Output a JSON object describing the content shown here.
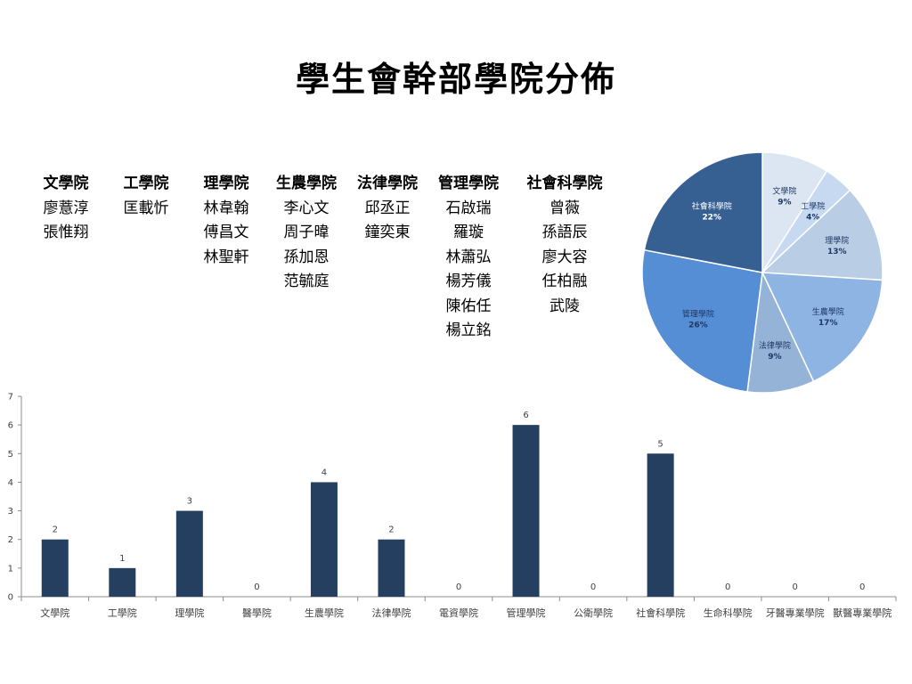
{
  "title": "學生會幹部學院分佈",
  "roster": [
    {
      "college": "文學院",
      "members": [
        "廖薏淳",
        "張惟翔"
      ]
    },
    {
      "college": "工學院",
      "members": [
        "匡載忻"
      ]
    },
    {
      "college": "理學院",
      "members": [
        "林韋翰",
        "傅昌文",
        "林聖軒"
      ]
    },
    {
      "college": "生農學院",
      "members": [
        "李心文",
        "周子暐",
        "孫加恩",
        "范毓庭"
      ]
    },
    {
      "college": "法律學院",
      "members": [
        "邱丞正",
        "鐘奕東"
      ]
    },
    {
      "college": "管理學院",
      "members": [
        "石啟瑞",
        "羅璇",
        "林蕭弘",
        "楊芳儀",
        "陳佑任",
        "楊立銘"
      ]
    },
    {
      "college": "社會科學院",
      "members": [
        "曾薇",
        "孫語辰",
        "廖大容",
        "任柏融",
        "武陵"
      ]
    }
  ],
  "chart_data": [
    {
      "type": "pie",
      "labels": [
        "文學院",
        "工學院",
        "理學院",
        "生農學院",
        "法律學院",
        "管理學院",
        "社會科學院"
      ],
      "values": [
        9,
        4,
        13,
        17,
        9,
        26,
        22
      ],
      "value_labels": [
        "9%",
        "4%",
        "13%",
        "17%",
        "9%",
        "26%",
        "22%"
      ],
      "colors": [
        "#dce6f2",
        "#c6d9f1",
        "#b9cde5",
        "#8eb4e3",
        "#95b3d7",
        "#558ed5",
        "#376092"
      ],
      "label_colors": [
        "#1f3864",
        "#1f3864",
        "#1f3864",
        "#1f3864",
        "#1f3864",
        "#1f3864",
        "#ffffff"
      ]
    },
    {
      "type": "bar",
      "categories": [
        "文學院",
        "工學院",
        "理學院",
        "醫學院",
        "生農學院",
        "法律學院",
        "電資學院",
        "管理學院",
        "公衛學院",
        "社會科學院",
        "生命科學院",
        "牙醫專業學院",
        "獸醫專業學院"
      ],
      "values": [
        2,
        1,
        3,
        0,
        4,
        2,
        0,
        6,
        0,
        5,
        0,
        0,
        0
      ],
      "ylim": [
        0,
        7
      ],
      "yticks": [
        0,
        1,
        2,
        3,
        4,
        5,
        6,
        7
      ],
      "bar_color": "#243f60",
      "grid": false
    }
  ]
}
